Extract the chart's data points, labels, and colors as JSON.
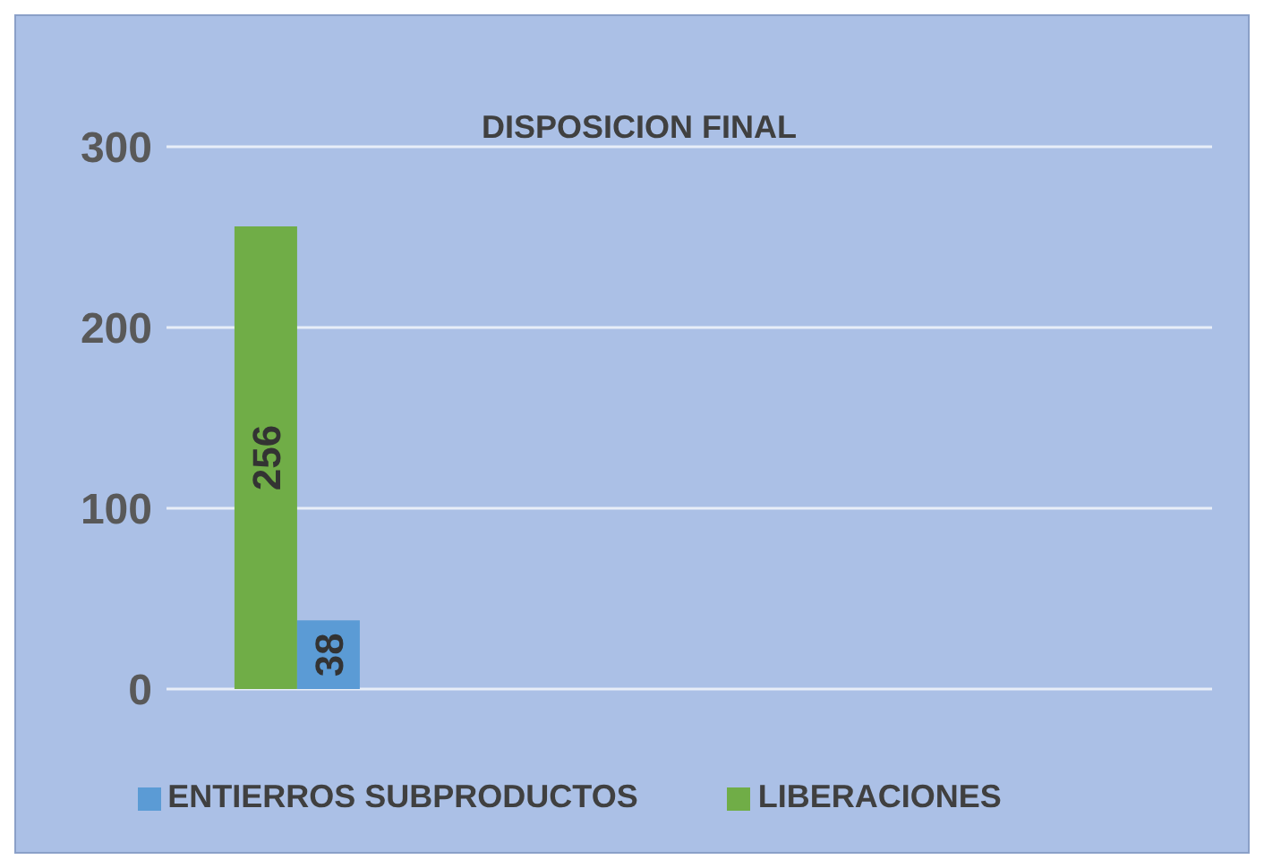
{
  "chart_data": {
    "type": "bar",
    "title": "DISPOSICION FINAL",
    "categories": [
      null,
      null,
      null,
      null
    ],
    "series": [
      {
        "name": "LIBERACIONES",
        "color": "#70ad47",
        "values": [
          256,
          null,
          null,
          null
        ]
      },
      {
        "name": "ENTIERROS SUBPRODUCTOS",
        "color": "#5b9bd5",
        "values": [
          38,
          null,
          null,
          null
        ]
      }
    ],
    "ylim": [
      0,
      300
    ],
    "yticks": [
      0,
      100,
      200,
      300
    ],
    "grid": "y",
    "legend": "bottom",
    "data_labels": true,
    "tick_labels": "y"
  }
}
